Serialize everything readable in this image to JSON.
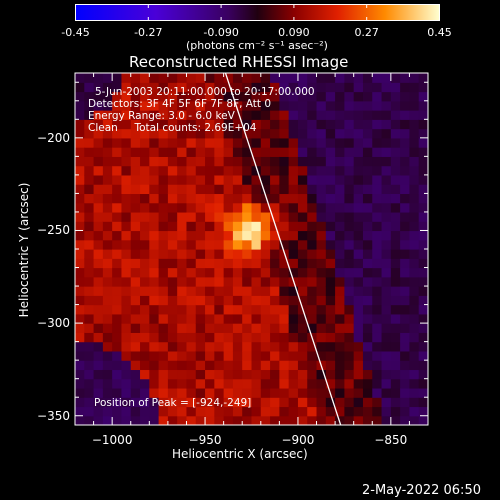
{
  "colorbar": {
    "tick_labels": [
      "-0.45",
      "-0.27",
      "-0.090",
      "0.090",
      "0.27",
      "0.45"
    ],
    "tick_values": [
      -0.45,
      -0.27,
      -0.09,
      0.09,
      0.27,
      0.45
    ],
    "range": [
      -0.45,
      0.45
    ],
    "units_label": "(photons cm⁻² s⁻¹ asec⁻²)"
  },
  "chart_data": {
    "type": "heatmap",
    "title": "Reconstructed RHESSI Image",
    "xlabel": "Heliocentric X (arcsec)",
    "ylabel": "Heliocentric Y (arcsec)",
    "xlim": [
      -1020,
      -830
    ],
    "ylim": [
      -355,
      -165
    ],
    "x_ticks": [
      -1000,
      -950,
      -900,
      -850
    ],
    "y_ticks": [
      -350,
      -300,
      -250,
      -200
    ],
    "x_tick_labels": [
      "−1000",
      "−950",
      "−900",
      "−850"
    ],
    "y_tick_labels": [
      "−350",
      "−300",
      "−250",
      "−200"
    ],
    "peak": [
      -924,
      -249
    ],
    "peak_value": 0.45,
    "limb_line": [
      [
        -939,
        -165
      ],
      [
        -877,
        -355
      ]
    ],
    "annotations": {
      "time_range": "5-Jun-2003 20:11:00.000 to 20:17:00.000",
      "detectors": "Detectors: 3F 4F 5F 6F 7F 8F, Att 0",
      "energy_range": "Energy Range: 3.0 - 6.0 keV",
      "clean_counts": "Clean     Total counts: 2.69E+04",
      "peak_position": "Position of Peak = [-924,-249]"
    }
  },
  "footer": {
    "timestamp": "2-May-2022 06:50"
  }
}
